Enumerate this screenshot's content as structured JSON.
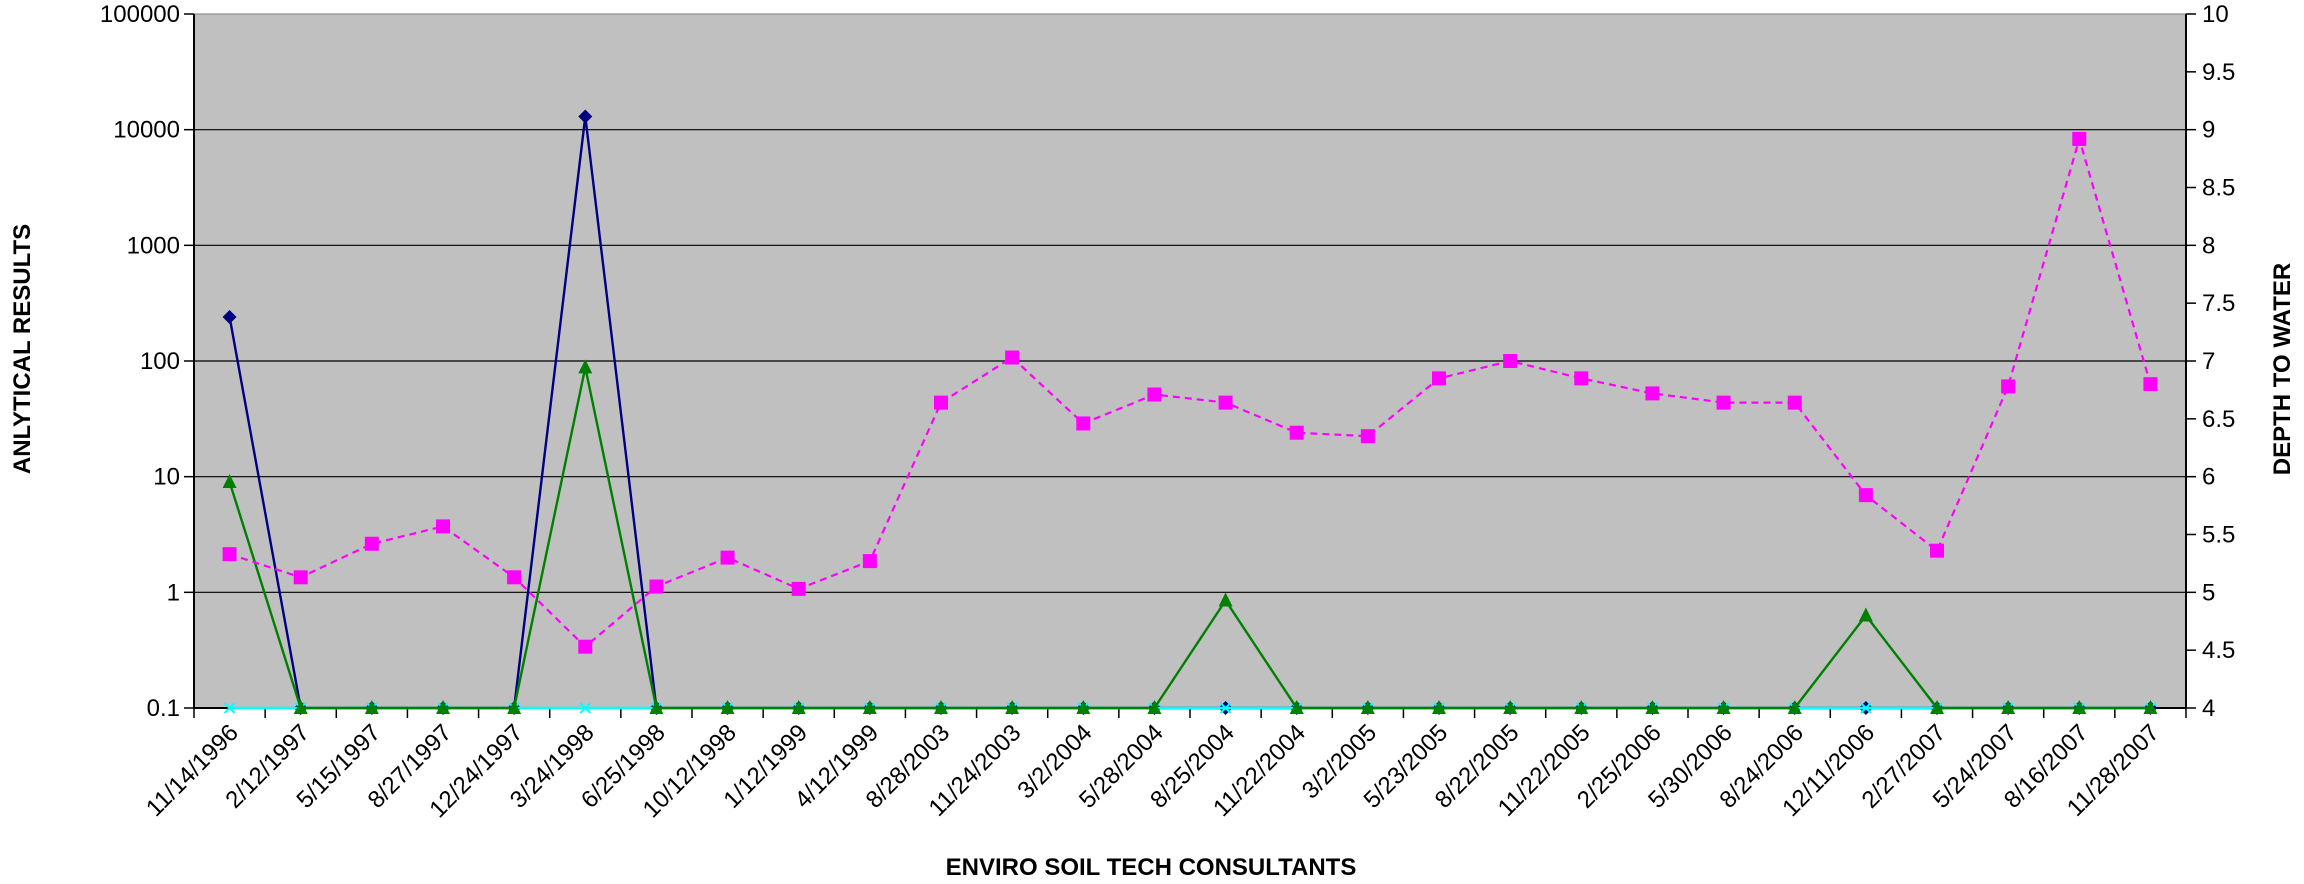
{
  "chart_data": {
    "type": "line",
    "title": "",
    "xlabel": "ENVIRO SOIL TECH CONSULTANTS",
    "ylabel": "ANLYTICAL RESULTS",
    "y2label": "DEPTH TO WATER",
    "y_scale": "log",
    "ylim": [
      0.1,
      100000
    ],
    "y_ticks": [
      "0.1",
      "1",
      "10",
      "100",
      "1000",
      "10000",
      "100000"
    ],
    "y2lim": [
      4,
      10
    ],
    "y2_ticks": [
      "4",
      "4.5",
      "5",
      "5.5",
      "6",
      "6.5",
      "7",
      "7.5",
      "8",
      "8.5",
      "9",
      "9.5",
      "10"
    ],
    "grid": "horizontal",
    "plot_background": "#c0c0c0",
    "categories": [
      "11/14/1996",
      "2/12/1997",
      "5/15/1997",
      "8/27/1997",
      "12/24/1997",
      "3/24/1998",
      "6/25/1998",
      "10/12/1998",
      "1/12/1999",
      "4/12/1999",
      "8/28/2003",
      "11/24/2003",
      "3/2/2004",
      "5/28/2004",
      "8/25/2004",
      "11/22/2004",
      "3/2/2005",
      "5/23/2005",
      "8/22/2005",
      "11/22/2005",
      "2/25/2006",
      "5/30/2006",
      "8/24/2006",
      "12/11/2006",
      "2/27/2007",
      "5/24/2007",
      "8/16/2007",
      "11/28/2007"
    ],
    "series": [
      {
        "axis": "left",
        "color": "#000080",
        "marker": "diamond",
        "dash": "solid",
        "values": [
          240,
          0.1,
          0.1,
          0.1,
          0.1,
          13000,
          0.1,
          0.1,
          0.1,
          0.1,
          0.1,
          0.1,
          0.1,
          0.1,
          0.1,
          0.1,
          0.1,
          0.1,
          0.1,
          0.1,
          0.1,
          0.1,
          0.1,
          0.1,
          0.1,
          0.1,
          0.1,
          0.1
        ]
      },
      {
        "axis": "left",
        "color": "#00ffff",
        "marker": "x",
        "dash": "solid",
        "values": [
          0.1,
          0.1,
          0.1,
          0.1,
          0.1,
          0.1,
          0.1,
          0.1,
          0.1,
          0.1,
          0.1,
          0.1,
          0.1,
          0.1,
          0.1,
          0.1,
          0.1,
          0.1,
          0.1,
          0.1,
          0.1,
          0.1,
          0.1,
          0.1,
          0.1,
          0.1,
          0.1,
          0.1
        ]
      },
      {
        "axis": "left",
        "color": "#008000",
        "marker": "triangle",
        "dash": "solid",
        "values": [
          9,
          0.1,
          0.1,
          0.1,
          0.1,
          88,
          0.1,
          0.1,
          0.1,
          0.1,
          0.1,
          0.1,
          0.1,
          0.1,
          0.85,
          0.1,
          0.1,
          0.1,
          0.1,
          0.1,
          0.1,
          0.1,
          0.1,
          0.63,
          0.1,
          0.1,
          0.1,
          0.1
        ]
      },
      {
        "axis": "right",
        "color": "#ff00ff",
        "marker": "square",
        "dash": "dashed",
        "values": [
          5.33,
          5.13,
          5.42,
          5.57,
          5.13,
          4.53,
          5.05,
          5.3,
          5.03,
          5.27,
          6.64,
          7.03,
          6.46,
          6.71,
          6.64,
          6.38,
          6.35,
          6.85,
          7.0,
          6.85,
          6.72,
          6.64,
          6.64,
          5.84,
          5.36,
          6.78,
          8.92,
          6.8
        ]
      }
    ]
  }
}
